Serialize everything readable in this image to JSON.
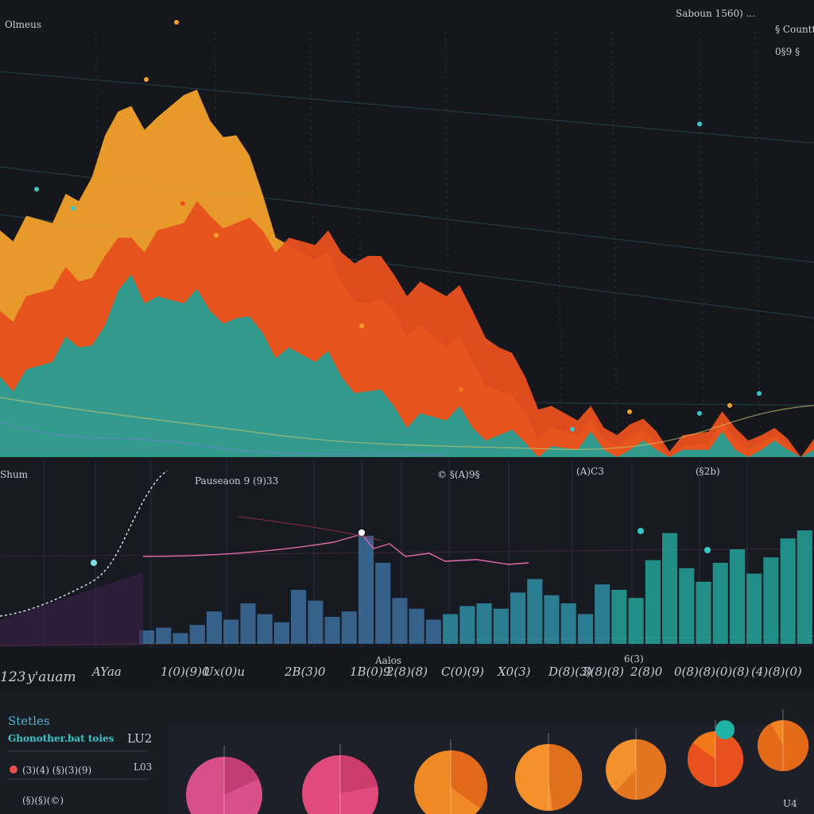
{
  "colors": {
    "background": "#16171d",
    "panel": "#1c1e26",
    "grid": "#2b3a44",
    "orange": "#f07a1a",
    "amber": "#f2a12a",
    "red_orange": "#e8501e",
    "teal": "#1fa39a",
    "blue": "#2a6f9e",
    "magenta": "#d94f8a",
    "pink_line": "#e06aa8"
  },
  "top_chart": {
    "corner_left_label": "Olmeus",
    "corner_right_label": "Saboun 1560) ...",
    "right_small_label_1": "§ Countt",
    "right_small_label_2": "0§9 §"
  },
  "middle_chart": {
    "left_label": "Shum",
    "center_label": "Pauseaon 9 (9)33",
    "right_label_1": "© §(A)9§",
    "right_label_2": "(A)C3",
    "right_label_3": "(§2b)"
  },
  "x_axis": {
    "label_start": "123",
    "label_unit": "y'auam",
    "ticks": [
      "AYaa",
      "1(0)(9)0",
      "Ux(0)u",
      "2B(3)0",
      "1B(0)9",
      "2(8)(8)",
      "C(0)(9)",
      "X0(3)",
      "D(8)(3)",
      "3(8)(8)",
      "2(8)0",
      "0(8)(8)",
      "(0)(8)",
      "(4)(8)(0)"
    ],
    "small_marks": [
      "Aalos",
      "6(3)"
    ]
  },
  "bottom_panel": {
    "heading": "Stetles",
    "sub_heading": "Ghonother.bat toies",
    "sub_value": "LU2",
    "row_label": "(3)(4) (§)(3)(9)",
    "row_value": "L03",
    "row2_label": "(§)(§)(©)",
    "corner_value": "U4"
  },
  "chart_data": [
    {
      "type": "area",
      "title": "",
      "series": [
        {
          "color": "amber",
          "values": [
            62,
            66,
            64,
            70,
            88,
            96,
            93,
            99,
            92,
            88,
            72,
            58,
            54,
            48,
            42,
            40,
            36,
            30,
            26,
            18,
            12,
            8,
            6,
            5,
            6,
            4,
            3,
            4,
            5,
            4,
            3,
            3
          ]
        },
        {
          "color": "red_orange",
          "values": [
            40,
            44,
            46,
            48,
            55,
            60,
            62,
            64,
            66,
            64,
            62,
            60,
            58,
            56,
            55,
            50,
            48,
            44,
            40,
            30,
            22,
            14,
            10,
            8,
            9,
            7,
            6,
            7,
            8,
            6,
            5,
            5
          ]
        },
        {
          "color": "teal",
          "values": [
            22,
            24,
            26,
            30,
            36,
            50,
            44,
            42,
            40,
            38,
            34,
            30,
            26,
            22,
            18,
            14,
            12,
            10,
            8,
            6,
            4,
            3,
            2,
            2,
            2,
            2,
            2,
            2,
            2,
            2,
            2,
            2
          ]
        }
      ]
    },
    {
      "type": "bar",
      "title": "",
      "values": [
        10,
        12,
        8,
        14,
        24,
        18,
        30,
        22,
        16,
        40,
        32,
        20,
        24,
        80,
        60,
        34,
        26,
        18,
        22,
        28,
        30,
        26,
        38,
        48,
        36,
        30,
        22,
        44,
        40,
        34,
        62,
        82,
        56,
        46,
        60,
        70,
        52,
        64,
        78,
        84
      ]
    },
    {
      "type": "pie",
      "title": "",
      "shares": [
        0.18,
        0.22,
        0.35,
        0.48,
        0.62,
        0.85,
        0.92
      ]
    }
  ]
}
